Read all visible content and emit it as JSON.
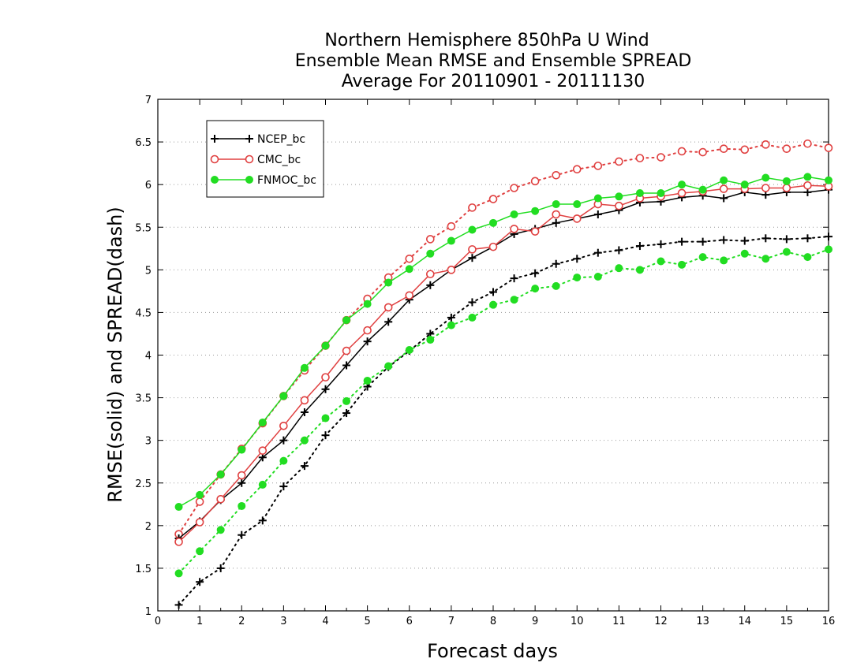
{
  "chart_data": {
    "type": "line",
    "title_lines": [
      "Northern Hemisphere 850hPa U Wind",
      "Ensemble Mean RMSE and Ensemble SPREAD",
      "Average For 20110901 - 20111130"
    ],
    "xlabel": "Forecast days",
    "ylabel": "RMSE(solid) and SPREAD(dash)",
    "xlim": [
      0,
      16
    ],
    "ylim": [
      1,
      7
    ],
    "x_ticks": [
      "0",
      "1",
      "2",
      "3",
      "4",
      "5",
      "6",
      "7",
      "8",
      "9",
      "10",
      "11",
      "12",
      "13",
      "14",
      "15",
      "16"
    ],
    "y_ticks": [
      "1",
      "1.5",
      "2",
      "2.5",
      "3",
      "3.5",
      "4",
      "4.5",
      "5",
      "5.5",
      "6",
      "6.5",
      "7"
    ],
    "grid": "horizontal-dotted",
    "legend_position": "top-left",
    "x": [
      0.5,
      1,
      1.5,
      2,
      2.5,
      3,
      3.5,
      4,
      4.5,
      5,
      5.5,
      6,
      6.5,
      7,
      7.5,
      8,
      8.5,
      9,
      9.5,
      10,
      10.5,
      11,
      11.5,
      12,
      12.5,
      13,
      13.5,
      14,
      14.5,
      15,
      15.5,
      16
    ],
    "series": [
      {
        "name": "NCEP_bc",
        "metric": "rmse",
        "color": "#000000",
        "marker": "plus",
        "values": [
          1.85,
          2.05,
          2.3,
          2.5,
          2.8,
          3.0,
          3.33,
          3.6,
          3.88,
          4.16,
          4.39,
          4.65,
          4.82,
          5.0,
          5.14,
          5.27,
          5.42,
          5.48,
          5.55,
          5.6,
          5.65,
          5.7,
          5.79,
          5.8,
          5.85,
          5.87,
          5.84,
          5.91,
          5.88,
          5.91,
          5.91,
          5.94
        ]
      },
      {
        "name": "CMC_bc",
        "metric": "rmse",
        "color": "#e04040",
        "marker": "open-circle",
        "values": [
          1.81,
          2.04,
          2.31,
          2.59,
          2.88,
          3.17,
          3.47,
          3.74,
          4.05,
          4.29,
          4.56,
          4.7,
          4.95,
          5.0,
          5.24,
          5.27,
          5.48,
          5.45,
          5.65,
          5.6,
          5.77,
          5.75,
          5.84,
          5.86,
          5.9,
          5.92,
          5.95,
          5.95,
          5.96,
          5.96,
          5.99,
          5.98
        ]
      },
      {
        "name": "FNMOC_bc",
        "metric": "rmse",
        "color": "#22dd22",
        "marker": "filled-circle",
        "values": [
          2.22,
          2.36,
          2.6,
          2.89,
          3.21,
          3.52,
          3.85,
          4.11,
          4.41,
          4.6,
          4.85,
          5.01,
          5.19,
          5.34,
          5.47,
          5.55,
          5.65,
          5.69,
          5.77,
          5.77,
          5.84,
          5.86,
          5.9,
          5.9,
          6.0,
          5.94,
          6.05,
          6.0,
          6.08,
          6.04,
          6.09,
          6.05
        ]
      },
      {
        "metric": "spread",
        "color": "#000000",
        "marker": "plus",
        "values": [
          1.07,
          1.34,
          1.5,
          1.89,
          2.06,
          2.46,
          2.7,
          3.06,
          3.32,
          3.63,
          3.86,
          4.05,
          4.25,
          4.44,
          4.62,
          4.74,
          4.9,
          4.96,
          5.07,
          5.13,
          5.2,
          5.23,
          5.28,
          5.3,
          5.33,
          5.33,
          5.35,
          5.34,
          5.37,
          5.36,
          5.37,
          5.39
        ]
      },
      {
        "metric": "spread",
        "color": "#e04040",
        "marker": "open-circle",
        "values": [
          1.9,
          2.28,
          2.6,
          2.9,
          3.2,
          3.52,
          3.82,
          4.11,
          4.41,
          4.66,
          4.91,
          5.13,
          5.36,
          5.51,
          5.73,
          5.83,
          5.96,
          6.04,
          6.11,
          6.18,
          6.22,
          6.27,
          6.31,
          6.32,
          6.39,
          6.38,
          6.42,
          6.41,
          6.47,
          6.42,
          6.48,
          6.43
        ]
      },
      {
        "metric": "spread",
        "color": "#22dd22",
        "marker": "filled-circle",
        "values": [
          1.44,
          1.7,
          1.95,
          2.23,
          2.48,
          2.76,
          3.0,
          3.26,
          3.46,
          3.7,
          3.87,
          4.06,
          4.18,
          4.35,
          4.44,
          4.59,
          4.65,
          4.78,
          4.81,
          4.91,
          4.92,
          5.02,
          5.0,
          5.1,
          5.06,
          5.15,
          5.11,
          5.19,
          5.13,
          5.21,
          5.15,
          5.24
        ]
      }
    ]
  }
}
